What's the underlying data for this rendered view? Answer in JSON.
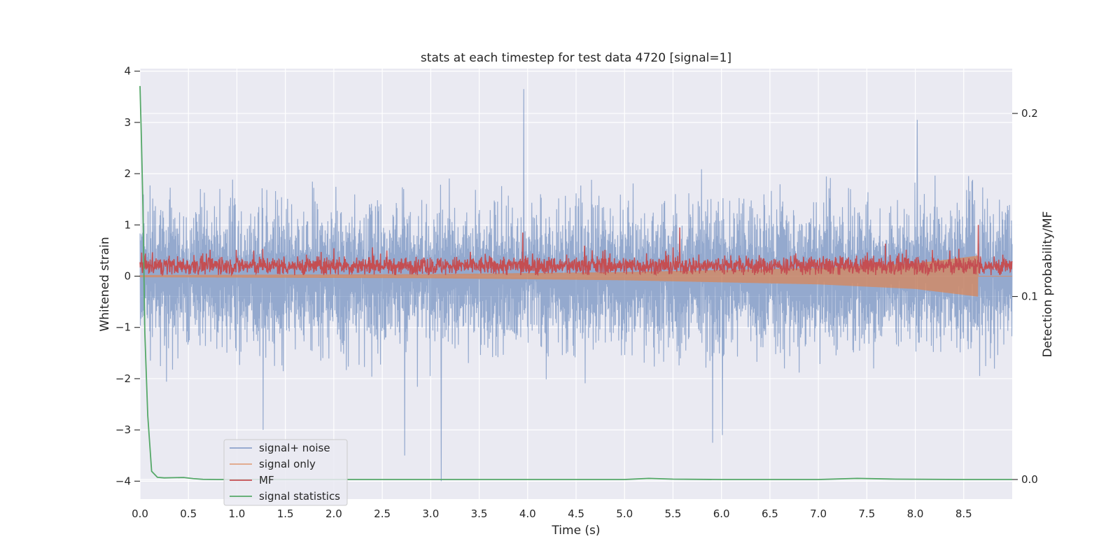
{
  "chart_data": {
    "type": "line",
    "title": "stats at each timestep for test data 4720 [signal=1]",
    "xlabel": "Time (s)",
    "ylabel": "Whitened strain",
    "ylabel_right": "Detection probability/MF",
    "xlim": [
      0.0,
      9.0
    ],
    "ylim": [
      -4.35,
      4.05
    ],
    "ylim_right": [
      -0.0107,
      0.2245
    ],
    "x_ticks": [
      "0.0",
      "0.5",
      "1.0",
      "1.5",
      "2.0",
      "2.5",
      "3.0",
      "3.5",
      "4.0",
      "4.5",
      "5.0",
      "5.5",
      "6.0",
      "6.5",
      "7.0",
      "7.5",
      "8.0",
      "8.5"
    ],
    "y_ticks": [
      "4",
      "3",
      "2",
      "1",
      "0",
      "−1",
      "−2",
      "−3",
      "−4"
    ],
    "y_ticks_right": [
      "0.2",
      "0.1",
      "0.0"
    ],
    "legend_position": "lower-left",
    "series": [
      {
        "name": "signal+ noise",
        "color": "#4c72b0",
        "axis": "left",
        "description": "noisy whitened strain, approx. range -2.3 to 2.3 with spikes to 3.65",
        "amplitude_range": [
          -2.3,
          2.3
        ],
        "spikes": [
          {
            "x": 3.96,
            "y": 3.65
          },
          {
            "x": 8.02,
            "y": 3.05
          },
          {
            "x": 3.11,
            "y": -4.0
          },
          {
            "x": 2.73,
            "y": -3.5
          },
          {
            "x": 5.91,
            "y": -3.25
          },
          {
            "x": 6.01,
            "y": -3.1
          },
          {
            "x": 1.27,
            "y": -3.0
          }
        ]
      },
      {
        "name": "signal only",
        "color": "#dd8452",
        "axis": "left",
        "description": "chirp waveform, envelope growing from ~0.02 to ~0.4, merger near 8.65 s",
        "envelope": [
          {
            "x": 0.0,
            "a": 0.02
          },
          {
            "x": 3.0,
            "a": 0.04
          },
          {
            "x": 5.0,
            "a": 0.08
          },
          {
            "x": 7.0,
            "a": 0.16
          },
          {
            "x": 8.0,
            "a": 0.25
          },
          {
            "x": 8.65,
            "a": 0.4
          }
        ]
      },
      {
        "name": "MF",
        "color": "#c44e52",
        "axis": "right",
        "description": "matched-filter output, baseline ~0.21 strain units, peaks 0.85 @3.95 s, 0.95 @5.57 s, 1.0 @8.65 s",
        "peaks": [
          {
            "x": 3.95,
            "y": 0.85
          },
          {
            "x": 5.57,
            "y": 0.95
          },
          {
            "x": 8.65,
            "y": 1.0
          }
        ]
      },
      {
        "name": "signal statistics",
        "color": "#55a868",
        "axis": "right",
        "x": [
          0.0,
          0.015,
          0.03,
          0.05,
          0.08,
          0.12,
          0.18,
          0.25,
          0.35,
          0.45,
          0.55,
          0.65,
          0.8,
          1.0,
          2.0,
          3.0,
          4.0,
          5.0,
          5.25,
          5.5,
          6.0,
          7.0,
          7.4,
          7.8,
          8.5,
          9.0
        ],
        "values": [
          0.215,
          0.185,
          0.15,
          0.08,
          0.035,
          0.0045,
          0.0012,
          0.0009,
          0.001,
          0.0011,
          0.0005,
          0.0001,
          0.0,
          0.0,
          0.0,
          0.0,
          0.0,
          0.0,
          0.0006,
          0.0002,
          0.0,
          0.0,
          0.0006,
          0.0002,
          0.0,
          0.0
        ]
      }
    ]
  }
}
